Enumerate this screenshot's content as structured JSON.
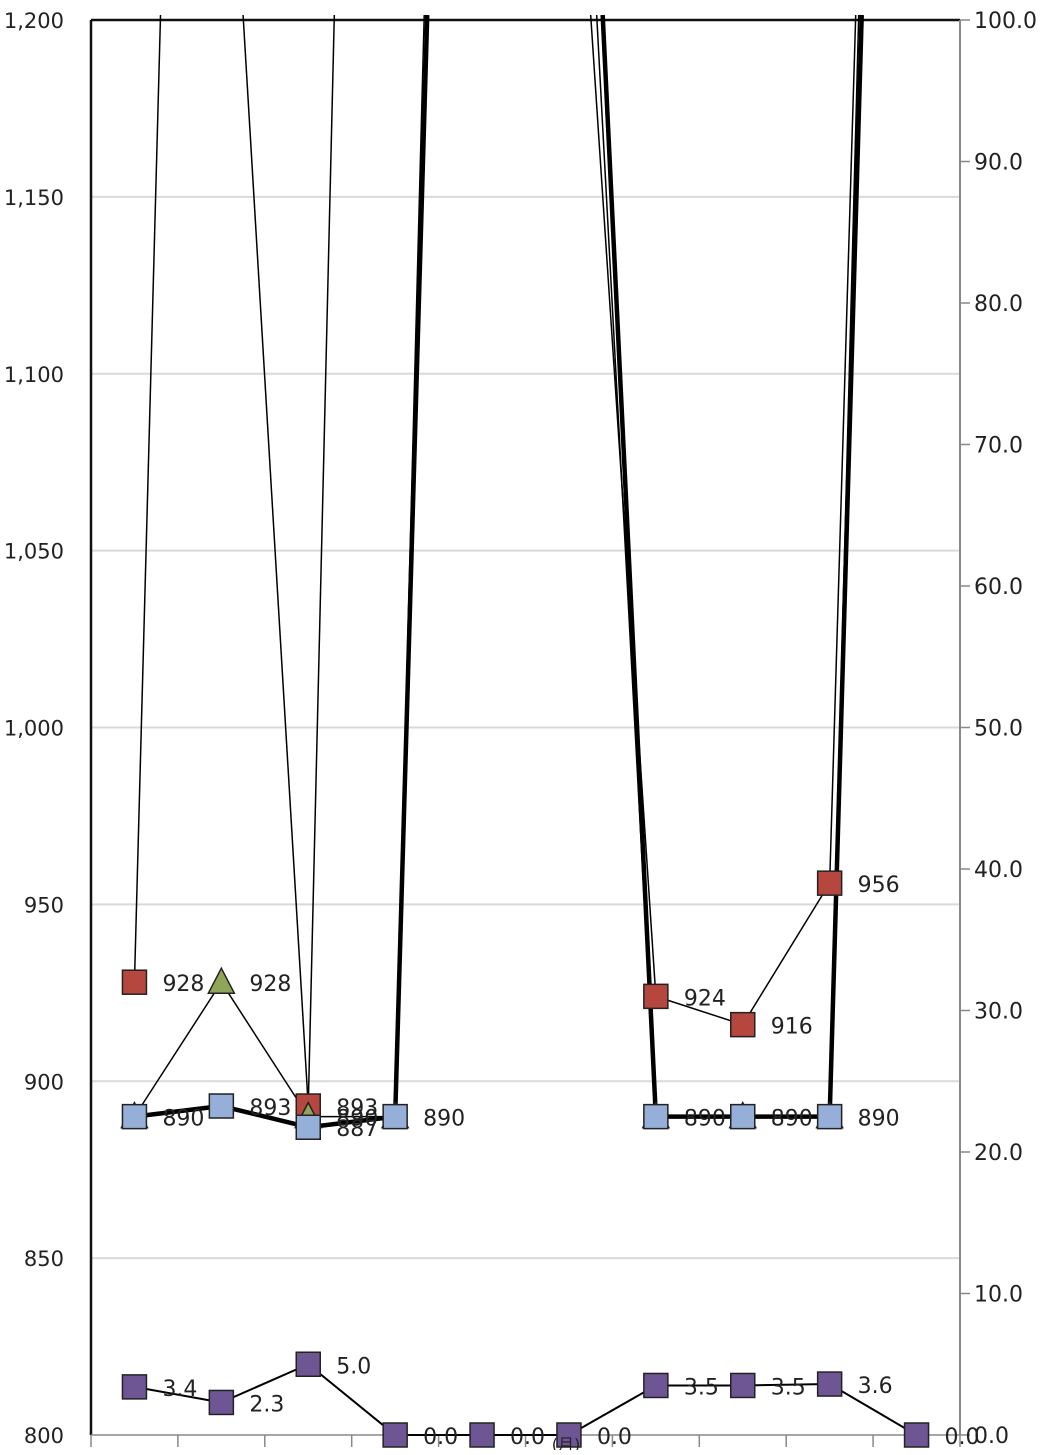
{
  "chart_data": {
    "type": "line",
    "title": "",
    "xlabel": "(月)",
    "ylabel": "",
    "grid": true,
    "legend": "none",
    "left_axis": {
      "ylim": [
        800,
        1200
      ],
      "ticks": [
        800,
        850,
        900,
        950,
        1000,
        1050,
        1100,
        1150,
        1200
      ],
      "tick_labels": [
        "800",
        "850",
        "900",
        "950",
        "1,000",
        "1,050",
        "1,100",
        "1,150",
        "1,200"
      ]
    },
    "right_axis": {
      "ylim": [
        0,
        100
      ],
      "ticks": [
        0,
        10,
        20,
        30,
        40,
        50,
        60,
        70,
        80,
        90,
        100
      ],
      "tick_labels": [
        "0.0",
        "10.0",
        "20.0",
        "30.0",
        "40.0",
        "50.0",
        "60.0",
        "70.0",
        "80.0",
        "90.0",
        "100.0"
      ]
    },
    "x_positions": 10,
    "series": [
      {
        "axis": "left",
        "marker": "square",
        "color": "#b5473f",
        "line_width": 1.5,
        "values": [
          928,
          null,
          893,
          null,
          null,
          null,
          924,
          916,
          956,
          null
        ],
        "labels": [
          "928",
          "",
          "893",
          "",
          "",
          "",
          "924",
          "916",
          "956",
          ""
        ],
        "rise_from": [
          1,
          8
        ],
        "rise_style": "thin"
      },
      {
        "axis": "left",
        "marker": "triangle",
        "color": "#8fa557",
        "line_width": 1.5,
        "values": [
          890,
          928,
          890,
          890,
          null,
          null,
          890,
          890,
          890,
          null
        ],
        "labels": [
          "",
          "928",
          "890",
          "",
          "",
          "",
          "",
          "",
          "",
          ""
        ],
        "rise_from": [
          3,
          8
        ],
        "rise_style": "thin"
      },
      {
        "axis": "left",
        "marker": "square",
        "color": "#95afd8",
        "line_width": 4.5,
        "values": [
          890,
          893,
          887,
          890,
          null,
          null,
          890,
          890,
          890,
          null
        ],
        "labels": [
          "890",
          "893",
          "887",
          "890",
          "",
          "",
          "890",
          "890",
          "890",
          ""
        ],
        "rise_from": [
          3,
          8
        ],
        "rise_style": "thick"
      },
      {
        "axis": "right",
        "marker": "square",
        "color": "#6e5694",
        "line_width": 2,
        "values": [
          3.4,
          2.3,
          5.0,
          0.0,
          0.0,
          0.0,
          3.5,
          3.5,
          3.6,
          0.0
        ],
        "labels": [
          "3.4",
          "2.3",
          "5.0",
          "0.0",
          "0.0",
          "0.0",
          "3.5",
          "3.5",
          "3.6",
          "0.0"
        ]
      }
    ]
  }
}
